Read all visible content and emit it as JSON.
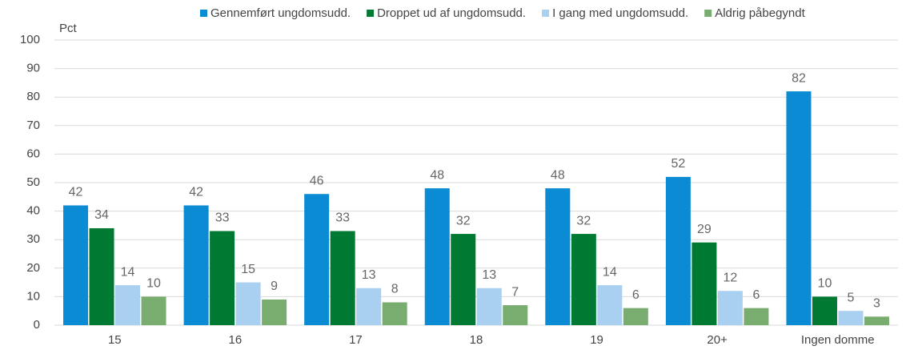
{
  "chart_data": {
    "type": "bar",
    "y_label": "Pct",
    "categories": [
      "15",
      "16",
      "17",
      "18",
      "19",
      "20+",
      "Ingen domme"
    ],
    "series": [
      {
        "name": "Gennemført ungdomsudd.",
        "color": "#0a8bd3",
        "values": [
          42,
          42,
          46,
          48,
          48,
          52,
          82
        ]
      },
      {
        "name": "Droppet ud af ungdomsudd.",
        "color": "#007a33",
        "values": [
          34,
          33,
          33,
          32,
          32,
          29,
          10
        ]
      },
      {
        "name": "I gang med ungdomsudd.",
        "color": "#a9cff1",
        "values": [
          14,
          15,
          13,
          13,
          14,
          12,
          5
        ]
      },
      {
        "name": "Aldrig påbegyndt",
        "color": "#79ad6f",
        "values": [
          10,
          9,
          8,
          7,
          6,
          6,
          3
        ]
      }
    ],
    "ylim": [
      0,
      100
    ],
    "yticks": [
      0,
      10,
      20,
      30,
      40,
      50,
      60,
      70,
      80,
      90,
      100
    ],
    "grid": true
  }
}
